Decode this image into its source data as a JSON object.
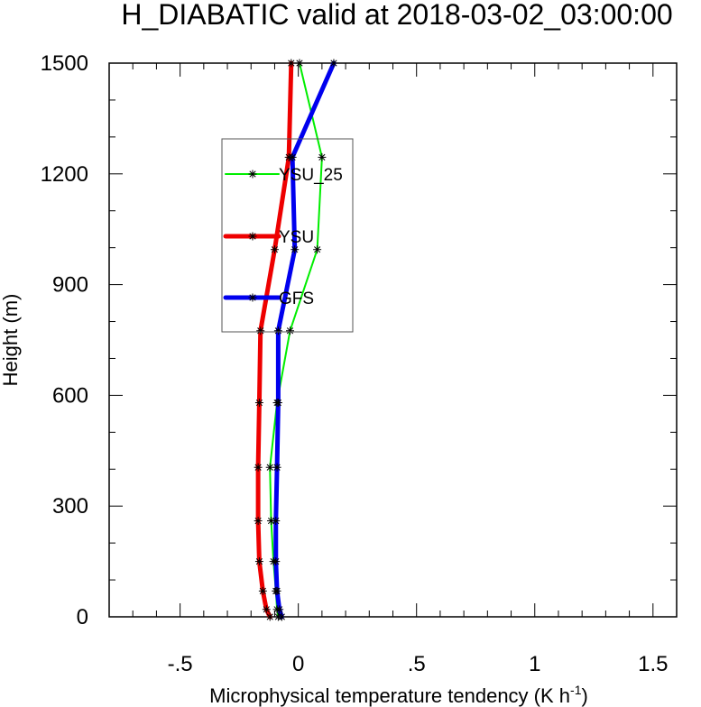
{
  "chart_data": {
    "type": "line",
    "title": "H_DIABATIC valid at 2018-03-02_03:00:00",
    "xlabel_main": "Microphysical temperature tendency (K h",
    "xlabel_sup": "-1",
    "xlabel_close": ")",
    "ylabel": "Height (m)",
    "xlim": [
      -0.8,
      1.6
    ],
    "ylim": [
      0,
      1500
    ],
    "xticks": [
      {
        "value": -0.5,
        "label": "-.5"
      },
      {
        "value": 0,
        "label": "0"
      },
      {
        "value": 0.5,
        "label": ".5"
      },
      {
        "value": 1,
        "label": "1"
      },
      {
        "value": 1.5,
        "label": "1.5"
      }
    ],
    "yticks": [
      {
        "value": 0,
        "label": "0"
      },
      {
        "value": 300,
        "label": "300"
      },
      {
        "value": 600,
        "label": "600"
      },
      {
        "value": 900,
        "label": "900"
      },
      {
        "value": 1200,
        "label": "1200"
      },
      {
        "value": 1500,
        "label": "1500"
      }
    ],
    "grid": false,
    "legend_position": "upper-left inside plot",
    "series": [
      {
        "name": "YSU_25",
        "color": "#00ee00",
        "thin": true,
        "points": [
          {
            "x": -0.085,
            "y": 0
          },
          {
            "x": -0.09,
            "y": 20
          },
          {
            "x": -0.095,
            "y": 70
          },
          {
            "x": -0.105,
            "y": 150
          },
          {
            "x": -0.115,
            "y": 260
          },
          {
            "x": -0.12,
            "y": 405
          },
          {
            "x": -0.09,
            "y": 580
          },
          {
            "x": -0.035,
            "y": 775
          },
          {
            "x": 0.08,
            "y": 995
          },
          {
            "x": 0.1,
            "y": 1245
          },
          {
            "x": 0.005,
            "y": 1500
          }
        ]
      },
      {
        "name": "YSU",
        "color": "#ee0000",
        "thin": false,
        "points": [
          {
            "x": -0.12,
            "y": 0
          },
          {
            "x": -0.135,
            "y": 20
          },
          {
            "x": -0.15,
            "y": 70
          },
          {
            "x": -0.165,
            "y": 150
          },
          {
            "x": -0.17,
            "y": 260
          },
          {
            "x": -0.17,
            "y": 405
          },
          {
            "x": -0.165,
            "y": 580
          },
          {
            "x": -0.16,
            "y": 775
          },
          {
            "x": -0.1,
            "y": 995
          },
          {
            "x": -0.04,
            "y": 1245
          },
          {
            "x": -0.03,
            "y": 1500
          }
        ]
      },
      {
        "name": "GFS",
        "color": "#0000ee",
        "thin": false,
        "points": [
          {
            "x": -0.07,
            "y": 0
          },
          {
            "x": -0.08,
            "y": 20
          },
          {
            "x": -0.09,
            "y": 70
          },
          {
            "x": -0.095,
            "y": 150
          },
          {
            "x": -0.095,
            "y": 260
          },
          {
            "x": -0.09,
            "y": 405
          },
          {
            "x": -0.085,
            "y": 580
          },
          {
            "x": -0.085,
            "y": 775
          },
          {
            "x": -0.015,
            "y": 995
          },
          {
            "x": -0.025,
            "y": 1245
          },
          {
            "x": 0.15,
            "y": 1500
          }
        ]
      }
    ]
  }
}
